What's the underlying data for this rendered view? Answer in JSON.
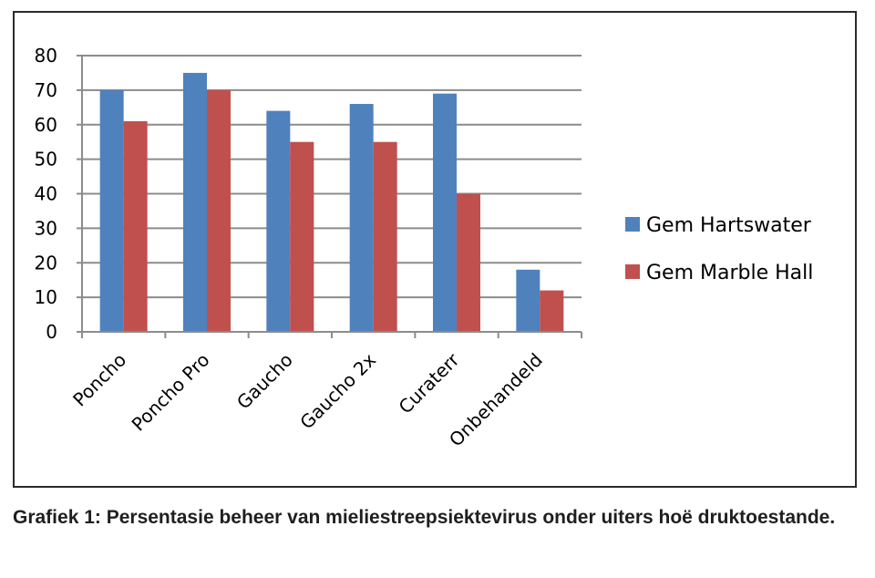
{
  "chart_data": {
    "type": "bar",
    "categories": [
      "Poncho",
      "Poncho Pro",
      "Gaucho",
      "Gaucho 2x",
      "Curaterr",
      "Onbehandeld"
    ],
    "series": [
      {
        "name": "Gem Hartswater",
        "color": "#4F81BD",
        "values": [
          70,
          75,
          64,
          66,
          69,
          18
        ]
      },
      {
        "name": "Gem Marble Hall",
        "color": "#C0504D",
        "values": [
          61,
          70,
          55,
          55,
          40,
          12
        ]
      }
    ],
    "ylim": [
      0,
      80
    ],
    "yticks": [
      0,
      10,
      20,
      30,
      40,
      50,
      60,
      70,
      80
    ],
    "grid": true,
    "legend_position": "right"
  },
  "caption": "Grafiek 1: Persentasie beheer van mieliestreepsiektevirus onder uiters hoë druktoestande."
}
